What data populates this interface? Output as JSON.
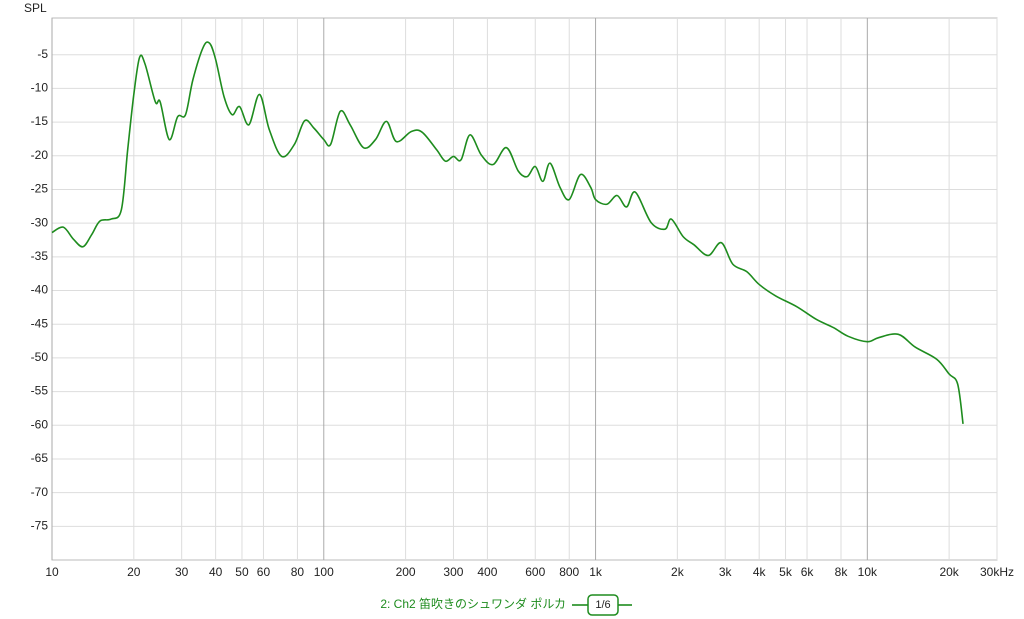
{
  "chart_data": {
    "type": "line",
    "y_label": "SPL",
    "xscale": "log",
    "grid": true,
    "xlim": [
      10,
      30000
    ],
    "ylim": [
      -80,
      0
    ],
    "yticks": [
      -5,
      -10,
      -15,
      -20,
      -25,
      -30,
      -35,
      -40,
      -45,
      -50,
      -55,
      -60,
      -65,
      -70,
      -75
    ],
    "xticks": [
      10,
      20,
      30,
      40,
      50,
      60,
      80,
      100,
      200,
      300,
      400,
      600,
      800,
      {
        "value": 1000,
        "label": "1k"
      },
      {
        "value": 2000,
        "label": "2k"
      },
      {
        "value": 3000,
        "label": "3k"
      },
      {
        "value": 4000,
        "label": "4k"
      },
      {
        "value": 5000,
        "label": "5k"
      },
      {
        "value": 6000,
        "label": "6k"
      },
      {
        "value": 8000,
        "label": "8k"
      },
      {
        "value": 10000,
        "label": "10k"
      },
      {
        "value": 20000,
        "label": "20k"
      },
      {
        "value": 30000,
        "label": "30kHz"
      }
    ],
    "smoothing": "1/6",
    "x": [
      10,
      11,
      12,
      13,
      14,
      15,
      16.5,
      18,
      19,
      20,
      21,
      22,
      24,
      25,
      27,
      29,
      31,
      33,
      36,
      38,
      40,
      43,
      46,
      49,
      53,
      58,
      63,
      70,
      78,
      85,
      92,
      100,
      106,
      115,
      125,
      140,
      155,
      170,
      185,
      210,
      230,
      260,
      280,
      300,
      320,
      345,
      380,
      420,
      470,
      520,
      560,
      600,
      640,
      680,
      740,
      800,
      880,
      960,
      1000,
      1100,
      1200,
      1300,
      1400,
      1600,
      1800,
      1900,
      2100,
      2300,
      2600,
      2900,
      3200,
      3600,
      4000,
      4600,
      5500,
      6500,
      7500,
      8500,
      10000,
      11000,
      13000,
      15000,
      18000,
      20000,
      21500,
      22500
    ],
    "series": [
      {
        "name": "2: Ch2 笛吹きのシュワンダ ポルカ",
        "color": "#1e8c1e",
        "values": [
          -31.4,
          -30.6,
          -32.4,
          -33.5,
          -31.7,
          -29.7,
          -29.4,
          -28,
          -19,
          -10.9,
          -5.4,
          -6.4,
          -12,
          -12,
          -17.6,
          -14.2,
          -13.9,
          -8.7,
          -3.9,
          -3.3,
          -5.7,
          -11.3,
          -13.9,
          -12.7,
          -15.4,
          -10.9,
          -16.1,
          -20.1,
          -18.3,
          -14.8,
          -15.9,
          -17.6,
          -18.3,
          -13.4,
          -15.4,
          -18.8,
          -17.6,
          -14.9,
          -17.9,
          -16.4,
          -16.5,
          -19.1,
          -20.8,
          -20.1,
          -20.6,
          -16.9,
          -19.9,
          -21.3,
          -18.8,
          -22.3,
          -23.1,
          -21.6,
          -23.8,
          -21.1,
          -24.7,
          -26.5,
          -22.8,
          -24.7,
          -26.5,
          -27.2,
          -25.9,
          -27.6,
          -25.4,
          -29.9,
          -30.9,
          -29.4,
          -32,
          -33.2,
          -34.8,
          -32.9,
          -36.1,
          -37.2,
          -39.1,
          -40.8,
          -42.4,
          -44.3,
          -45.5,
          -46.8,
          -47.6,
          -47,
          -46.5,
          -48.4,
          -50.2,
          -52.4,
          -53.9,
          -59.8
        ]
      }
    ]
  }
}
